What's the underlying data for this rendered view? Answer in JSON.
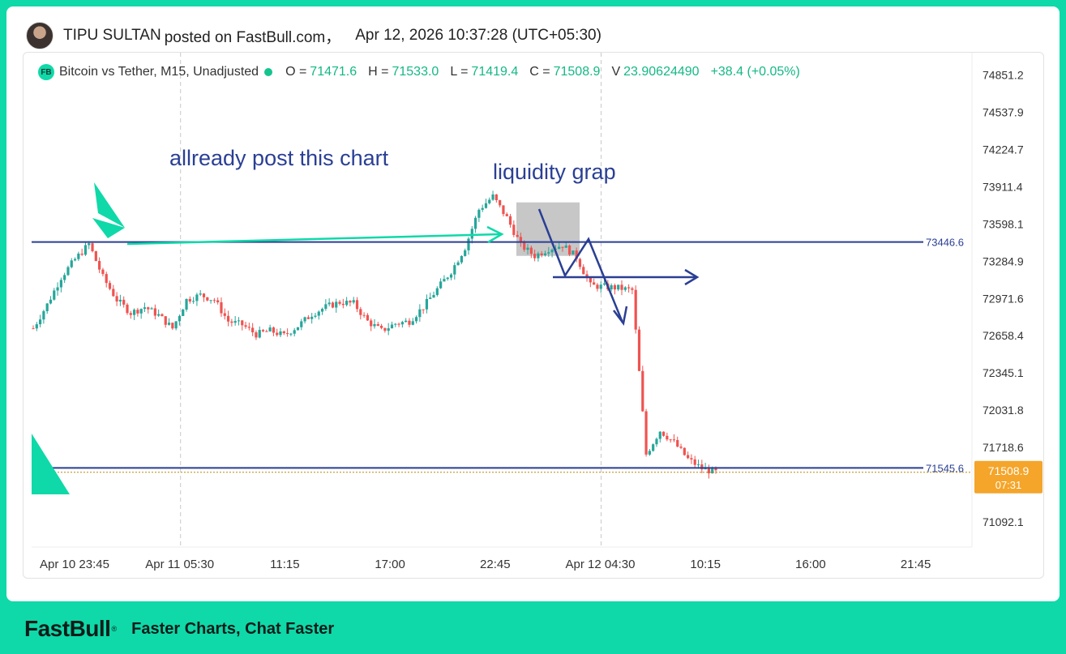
{
  "post": {
    "author": "TIPU SULTAN",
    "posted_on": "posted on FastBull.com，",
    "timestamp": "Apr 12, 2026 10:37:28 (UTC+05:30)"
  },
  "legend": {
    "symbol": "Bitcoin vs Tether, M15, Unadjusted",
    "badge": "FB",
    "open_label": "O =",
    "open": "71471.6",
    "high_label": "H =",
    "high": "71533.0",
    "low_label": "L =",
    "low": "71419.4",
    "close_label": "C =",
    "close": "71508.9",
    "volume_label": "V",
    "volume": "23.90624490",
    "change": "+38.4 (+0.05%)"
  },
  "annotations": {
    "text1": "allready post this chart",
    "text2": "liquidity grap"
  },
  "price_tag": {
    "price": "71508.9",
    "countdown": "07:31"
  },
  "footer": {
    "brand": "FastBull",
    "reg": "®",
    "tagline": "Faster Charts, Chat Faster"
  },
  "colors": {
    "up": "#26a69a",
    "down": "#ef5350",
    "accent": "#0fd9a8",
    "line": "#2a3f94",
    "annotation_text": "#2a3f94",
    "price_tag": "#f4a52a"
  },
  "chart_data": {
    "type": "candlestick",
    "symbol": "Bitcoin vs Tether",
    "timeframe": "M15",
    "y_ticks": [
      74851.2,
      74537.9,
      74224.7,
      73911.4,
      73598.1,
      73284.9,
      72971.6,
      72658.4,
      72345.1,
      72031.8,
      71718.6,
      71092.1
    ],
    "ylim": [
      70880,
      75040
    ],
    "x_ticks": [
      "Apr 10 23:45",
      "Apr 11 05:30",
      "11:15",
      "17:00",
      "22:45",
      "Apr 12 04:30",
      "10:15",
      "16:00",
      "21:45"
    ],
    "horizontal_lines": [
      73446.6,
      71545.6
    ],
    "last_price": 71508.9,
    "price_path": [
      72720,
      72920,
      73150,
      73300,
      73430,
      73150,
      72960,
      72850,
      72900,
      72830,
      72720,
      72960,
      73000,
      72960,
      72780,
      72750,
      72670,
      72700,
      72660,
      72740,
      72840,
      72900,
      72940,
      72930,
      72780,
      72700,
      72760,
      72780,
      72900,
      73050,
      73200,
      73400,
      73720,
      73830,
      73650,
      73420,
      73330,
      73390,
      73420,
      73320,
      73080,
      73070,
      73060,
      73040,
      71660,
      71860,
      71760,
      71620,
      71540,
      71509
    ]
  }
}
